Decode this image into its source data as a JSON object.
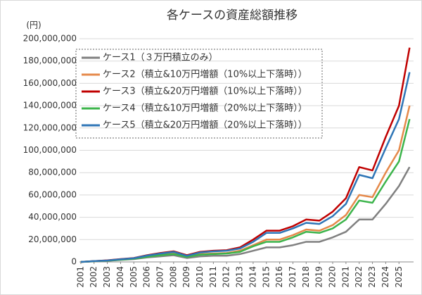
{
  "chart_data": {
    "type": "line",
    "title": "各ケースの資産総額推移",
    "y_unit": "(円)",
    "x": [
      2001,
      2002,
      2003,
      2004,
      2005,
      2006,
      2007,
      2008,
      2009,
      2010,
      2011,
      2012,
      2013,
      2014,
      2015,
      2016,
      2017,
      2018,
      2019,
      2020,
      2021,
      2022,
      2023,
      2024,
      2025,
      2025.8
    ],
    "xlim": [
      2000.9,
      2026.1
    ],
    "xticks": [
      2001,
      2002,
      2003,
      2004,
      2005,
      2006,
      2007,
      2008,
      2009,
      2010,
      2011,
      2012,
      2013,
      2014,
      2015,
      2016,
      2017,
      2018,
      2019,
      2020,
      2021,
      2022,
      2023,
      2024,
      2025
    ],
    "ylim": [
      0,
      200000000
    ],
    "yticks": [
      {
        "value": 0,
        "label": "0"
      },
      {
        "value": 20000000,
        "label": "20,000,000"
      },
      {
        "value": 40000000,
        "label": "40,000,000"
      },
      {
        "value": 60000000,
        "label": "60,000,000"
      },
      {
        "value": 80000000,
        "label": "80,000,000"
      },
      {
        "value": 100000000,
        "label": "100,000,000"
      },
      {
        "value": 120000000,
        "label": "120,000,000"
      },
      {
        "value": 140000000,
        "label": "140,000,000"
      },
      {
        "value": 160000000,
        "label": "160,000,000"
      },
      {
        "value": 180000000,
        "label": "180,000,000"
      },
      {
        "value": 200000000,
        "label": "200,000,000"
      }
    ],
    "grid": true,
    "legend": "upper left",
    "series": [
      {
        "name": "ケース1（３万円積立のみ）",
        "color": "#808080",
        "values": [
          0,
          500000,
          1000000,
          1800000,
          2500000,
          4000000,
          5000000,
          6000000,
          3500000,
          5000000,
          5500000,
          5500000,
          7000000,
          10000000,
          13000000,
          13000000,
          15000000,
          18000000,
          18000000,
          22000000,
          27000000,
          38000000,
          38000000,
          52000000,
          68000000,
          85000000
        ]
      },
      {
        "name": "ケース2（積立&10万円増額（10%以上下落時））",
        "color": "#e5894a",
        "values": [
          0,
          600000,
          1200000,
          2200000,
          3000000,
          5000000,
          6500000,
          7500000,
          5000000,
          7000000,
          7500000,
          8000000,
          10000000,
          15000000,
          20000000,
          20000000,
          24000000,
          29000000,
          28000000,
          33000000,
          42000000,
          60000000,
          58000000,
          80000000,
          100000000,
          140000000
        ]
      },
      {
        "name": "ケース3（積立&20万円増額（10%以上下落時））",
        "color": "#c00000",
        "values": [
          0,
          700000,
          1400000,
          2500000,
          3500000,
          6000000,
          8000000,
          9500000,
          6000000,
          9000000,
          10000000,
          10500000,
          13000000,
          20000000,
          28000000,
          28000000,
          32000000,
          38000000,
          37000000,
          45000000,
          57000000,
          85000000,
          82000000,
          112000000,
          140000000,
          192000000
        ]
      },
      {
        "name": "ケース4（積立&10万円増額（20%以上下落時））",
        "color": "#3cb44b",
        "values": [
          0,
          600000,
          1100000,
          2000000,
          2800000,
          4600000,
          6000000,
          7000000,
          4500000,
          6500000,
          7000000,
          7500000,
          9000000,
          14000000,
          18000000,
          18000000,
          22000000,
          27000000,
          26000000,
          30000000,
          38000000,
          55000000,
          53000000,
          72000000,
          90000000,
          128000000
        ]
      },
      {
        "name": "ケース5（積立&20万円増額（20%以上下落時））",
        "color": "#2e75b6",
        "values": [
          0,
          700000,
          1300000,
          2400000,
          3300000,
          5700000,
          7500000,
          9000000,
          5500000,
          8500000,
          9500000,
          10000000,
          12000000,
          18000000,
          26000000,
          26000000,
          30000000,
          35000000,
          34000000,
          41000000,
          52000000,
          78000000,
          75000000,
          102000000,
          128000000,
          170000000
        ]
      }
    ]
  }
}
